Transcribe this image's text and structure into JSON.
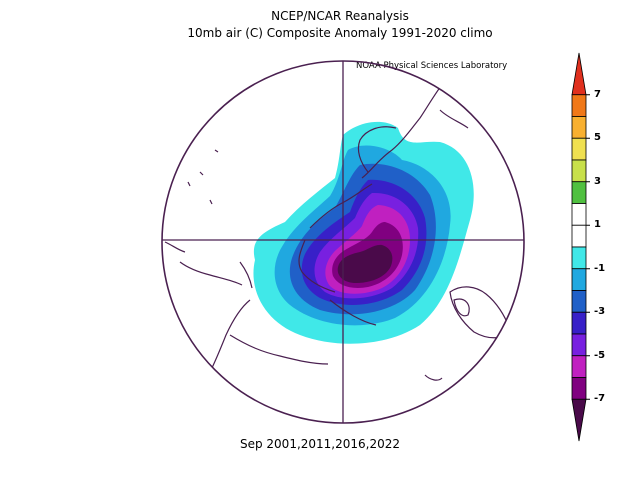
{
  "header": {
    "line1": "NCEP/NCAR Reanalysis",
    "line2": "10mb air (C) Composite Anomaly 1991-2020 climo",
    "credit": "NOAA Physical Sciences Laboratory"
  },
  "footer": {
    "dates": "Sep 2001,2011,2016,2022"
  },
  "colorbar": {
    "labels": [
      "7",
      "5",
      "3",
      "1",
      "-1",
      "-3",
      "-5",
      "-7"
    ],
    "colors": [
      "#e0301e",
      "#f07818",
      "#f8b030",
      "#f0e050",
      "#c8e04a",
      "#50c040",
      "#ffffff",
      "#ffffff",
      "#40e8e8",
      "#20a8e0",
      "#2060c8",
      "#3820c8",
      "#7820e0",
      "#c020c0",
      "#800080",
      "#4a0a4a"
    ]
  },
  "map": {
    "projection": "north-polar-stereographic",
    "anomaly_contours": [
      "-1",
      "-2",
      "-3",
      "-4",
      "-5",
      "-6",
      "-7"
    ],
    "contour_colors": [
      "#40e8e8",
      "#20a8e0",
      "#2060c8",
      "#3820c8",
      "#7820e0",
      "#c020c0",
      "#800080",
      "#4a0a4a"
    ]
  }
}
